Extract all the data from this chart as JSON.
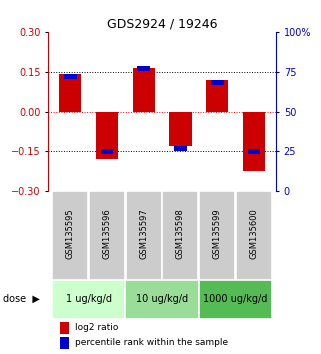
{
  "title": "GDS2924 / 19246",
  "samples": [
    "GSM135595",
    "GSM135596",
    "GSM135597",
    "GSM135598",
    "GSM135599",
    "GSM135600"
  ],
  "log2_ratio": [
    0.14,
    -0.18,
    0.162,
    -0.13,
    0.12,
    -0.225
  ],
  "percentile": [
    72,
    25,
    77,
    27,
    68,
    25
  ],
  "bar_color": "#cc0000",
  "dot_color": "#0000cc",
  "ylim_left": [
    -0.3,
    0.3
  ],
  "ylim_right": [
    0,
    100
  ],
  "yticks_left": [
    -0.3,
    -0.15,
    0,
    0.15,
    0.3
  ],
  "yticks_right": [
    0,
    25,
    50,
    75,
    100
  ],
  "yticklabels_right": [
    "0",
    "25",
    "50",
    "75",
    "100%"
  ],
  "hlines": [
    0.15,
    0.0,
    -0.15
  ],
  "hline_colors": [
    "black",
    "red",
    "black"
  ],
  "dose_groups": [
    {
      "label": "1 ug/kg/d",
      "color": "#ccffcc"
    },
    {
      "label": "10 ug/kg/d",
      "color": "#99dd99"
    },
    {
      "label": "1000 ug/kg/d",
      "color": "#55bb55"
    }
  ],
  "dose_label": "dose",
  "dose_arrow": "▶",
  "legend_red": "log2 ratio",
  "legend_blue": "percentile rank within the sample",
  "bar_width": 0.6,
  "left_axis_color": "#cc0000",
  "right_axis_color": "#0000cc",
  "background_color": "#ffffff",
  "sample_box_color": "#cccccc"
}
